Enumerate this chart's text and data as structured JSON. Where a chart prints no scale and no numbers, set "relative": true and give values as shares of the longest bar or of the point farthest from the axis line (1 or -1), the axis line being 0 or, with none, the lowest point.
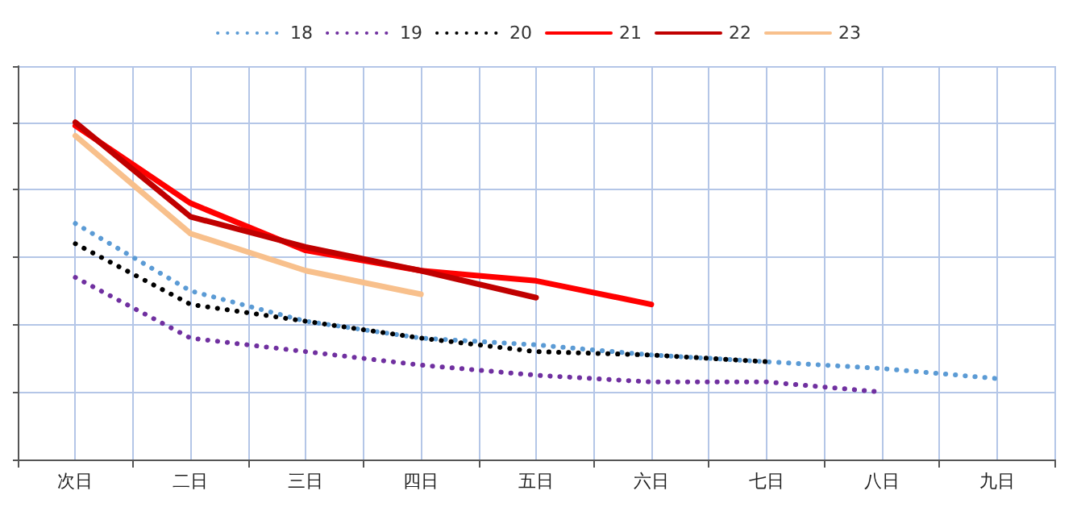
{
  "chart_data": {
    "type": "line",
    "relative": true,
    "categories": [
      "次日",
      "二日",
      "三日",
      "四日",
      "五日",
      "六日",
      "七日",
      "八日",
      "九日"
    ],
    "series": [
      {
        "name": "18",
        "color": "#5b9bd5",
        "line_style": "dotted",
        "values": [
          0.7,
          0.5,
          0.41,
          0.36,
          0.34,
          0.31,
          0.29,
          0.27,
          0.24
        ]
      },
      {
        "name": "19",
        "color": "#7030a0",
        "line_style": "dotted",
        "values": [
          0.54,
          0.36,
          0.32,
          0.28,
          0.25,
          0.23,
          0.23,
          0.2,
          null
        ]
      },
      {
        "name": "20",
        "color": "#000000",
        "line_style": "dotted",
        "values": [
          0.64,
          0.46,
          0.41,
          0.36,
          0.32,
          0.31,
          0.29,
          null,
          null
        ]
      },
      {
        "name": "21",
        "color": "#ff0000",
        "line_style": "solid",
        "values": [
          0.99,
          0.76,
          0.62,
          0.56,
          0.53,
          0.46,
          null,
          null,
          null
        ]
      },
      {
        "name": "22",
        "color": "#c00000",
        "line_style": "solid",
        "values": [
          1,
          0.72,
          0.63,
          0.56,
          0.48,
          null,
          null,
          null,
          null
        ]
      },
      {
        "name": "23",
        "color": "#f8c08c",
        "line_style": "solid",
        "values": [
          0.96,
          0.67,
          0.56,
          0.49,
          null,
          null,
          null,
          null,
          null
        ]
      }
    ],
    "grid": true,
    "legend": "top",
    "marker": "none"
  }
}
